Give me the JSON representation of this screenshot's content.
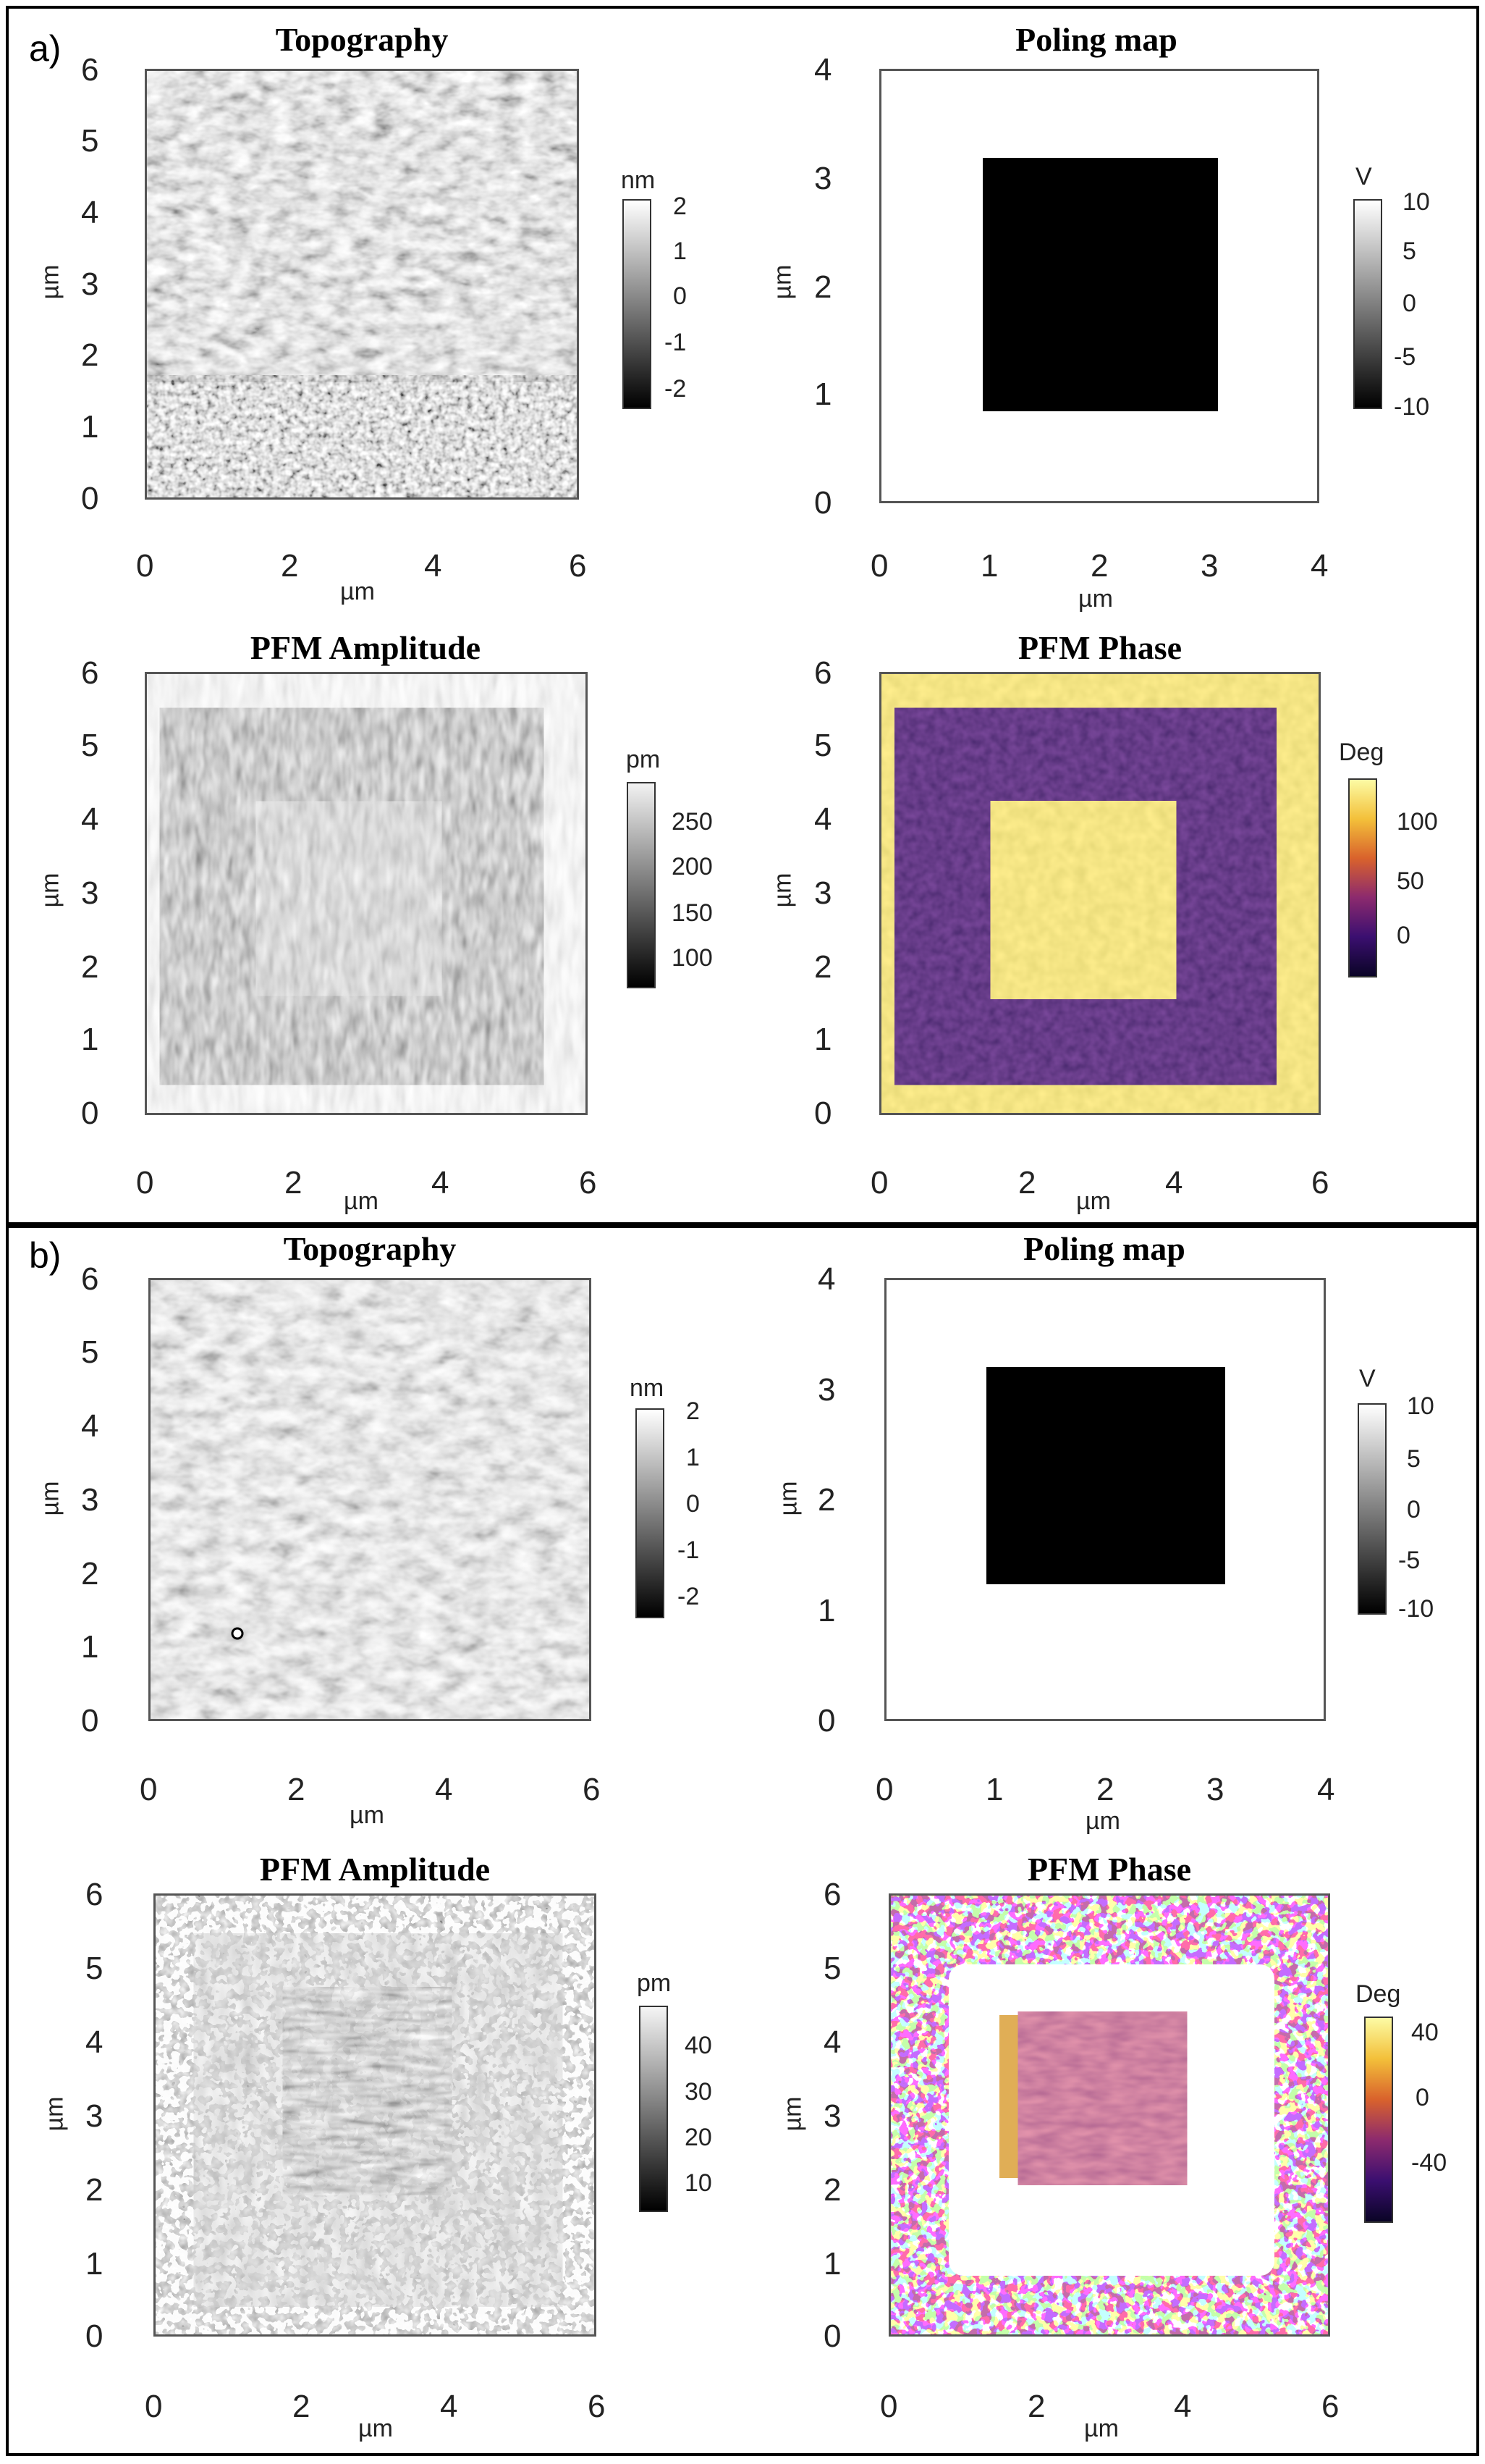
{
  "panels": [
    {
      "letter": "a)",
      "plots": [
        {
          "title": "Topography",
          "xlabel": "µm",
          "ylabel": "µm",
          "xticks": [
            "0",
            "2",
            "4",
            "6"
          ],
          "yticks": [
            "0",
            "1",
            "2",
            "3",
            "4",
            "5",
            "6"
          ],
          "colorbar": {
            "unit": "nm",
            "labels": [
              "2",
              "1",
              "0",
              "-1",
              "-2"
            ],
            "scheme": "gray"
          }
        },
        {
          "title": "Poling map",
          "xlabel": "µm",
          "ylabel": "µm",
          "xticks": [
            "0",
            "1",
            "2",
            "3",
            "4"
          ],
          "yticks": [
            "0",
            "1",
            "2",
            "3",
            "4"
          ],
          "colorbar": {
            "unit": "V",
            "labels": [
              "10",
              "5",
              "0",
              "-5",
              "-10"
            ],
            "scheme": "gray"
          }
        },
        {
          "title": "PFM Amplitude",
          "xlabel": "µm",
          "ylabel": "µm",
          "xticks": [
            "0",
            "2",
            "4",
            "6"
          ],
          "yticks": [
            "0",
            "1",
            "2",
            "3",
            "4",
            "5",
            "6"
          ],
          "colorbar": {
            "unit": "pm",
            "labels": [
              "250",
              "200",
              "150",
              "100"
            ],
            "scheme": "gray"
          }
        },
        {
          "title": "PFM Phase",
          "xlabel": "µm",
          "ylabel": "µm",
          "xticks": [
            "0",
            "2",
            "4",
            "6"
          ],
          "yticks": [
            "0",
            "1",
            "2",
            "3",
            "4",
            "5",
            "6"
          ],
          "colorbar": {
            "unit": "Deg",
            "labels": [
              "100",
              "50",
              "0"
            ],
            "scheme": "inferno"
          }
        }
      ]
    },
    {
      "letter": "b)",
      "plots": [
        {
          "title": "Topography",
          "xlabel": "µm",
          "ylabel": "µm",
          "xticks": [
            "0",
            "2",
            "4",
            "6"
          ],
          "yticks": [
            "0",
            "1",
            "2",
            "3",
            "4",
            "5",
            "6"
          ],
          "colorbar": {
            "unit": "nm",
            "labels": [
              "2",
              "1",
              "0",
              "-1",
              "-2"
            ],
            "scheme": "gray"
          }
        },
        {
          "title": "Poling map",
          "xlabel": "µm",
          "ylabel": "µm",
          "xticks": [
            "0",
            "1",
            "2",
            "3",
            "4"
          ],
          "yticks": [
            "0",
            "1",
            "2",
            "3",
            "4"
          ],
          "colorbar": {
            "unit": "V",
            "labels": [
              "10",
              "5",
              "0",
              "-5",
              "-10"
            ],
            "scheme": "gray"
          }
        },
        {
          "title": "PFM Amplitude",
          "xlabel": "µm",
          "ylabel": "µm",
          "xticks": [
            "0",
            "2",
            "4",
            "6"
          ],
          "yticks": [
            "0",
            "1",
            "2",
            "3",
            "4",
            "5",
            "6"
          ],
          "colorbar": {
            "unit": "pm",
            "labels": [
              "40",
              "30",
              "20",
              "10"
            ],
            "scheme": "gray"
          }
        },
        {
          "title": "PFM Phase",
          "xlabel": "µm",
          "ylabel": "µm",
          "xticks": [
            "0",
            "2",
            "4",
            "6"
          ],
          "yticks": [
            "0",
            "1",
            "2",
            "3",
            "4",
            "5",
            "6"
          ],
          "colorbar": {
            "unit": "Deg",
            "labels": [
              "40",
              "0",
              "-40"
            ],
            "scheme": "inferno"
          }
        }
      ]
    }
  ],
  "colors": {
    "phase_high": "#e8d24a",
    "phase_low": "#1a0c3a",
    "phase_mid": "#8a2a6e",
    "frame": "#555555"
  }
}
